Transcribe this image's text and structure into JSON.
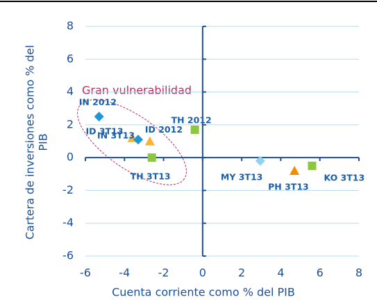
{
  "chart_data": {
    "type": "scatter",
    "xlabel": "Cuenta corriente como % del PIB",
    "ylabel": [
      "Cartera de inversiones como % del",
      "PIB"
    ],
    "annotation": "Gran vulnerabilidad",
    "xlim": [
      -6,
      8
    ],
    "xticks": [
      -6,
      -4,
      -2,
      0,
      2,
      4,
      6,
      8
    ],
    "ylim": [
      -6,
      8
    ],
    "yticks": [
      -6,
      -4,
      -2,
      0,
      2,
      4,
      6,
      8
    ],
    "grid": true,
    "points": [
      {
        "label": "IN 2012",
        "x": -5.3,
        "y": 2.5,
        "marker": "diamond",
        "color": "#1f97d4"
      },
      {
        "label": "ID 3T13",
        "x": -3.6,
        "y": 1.2,
        "marker": "triangle",
        "color": "#f9b233"
      },
      {
        "label": "IN 3T13",
        "x": -3.3,
        "y": 1.1,
        "marker": "diamond",
        "color": "#1f97d4"
      },
      {
        "label": "ID 2012",
        "x": -2.7,
        "y": 1.0,
        "marker": "triangle",
        "color": "#f9b233"
      },
      {
        "label": "TH 3T13",
        "x": -2.6,
        "y": 0,
        "marker": "square",
        "color": "#8dc63f"
      },
      {
        "label": "TH 2012",
        "x": -0.4,
        "y": 1.7,
        "marker": "square",
        "color": "#8dc63f"
      },
      {
        "label": "MY 3T13",
        "x": 2.95,
        "y": -0.2,
        "marker": "diamond",
        "color": "#92d1f0"
      },
      {
        "label": "PH 3T13",
        "x": 4.7,
        "y": -0.8,
        "marker": "triangle",
        "color": "#f28c00"
      },
      {
        "label": "KO 3T13",
        "x": 5.6,
        "y": -0.5,
        "marker": "square",
        "color": "#8dc63f"
      }
    ]
  }
}
